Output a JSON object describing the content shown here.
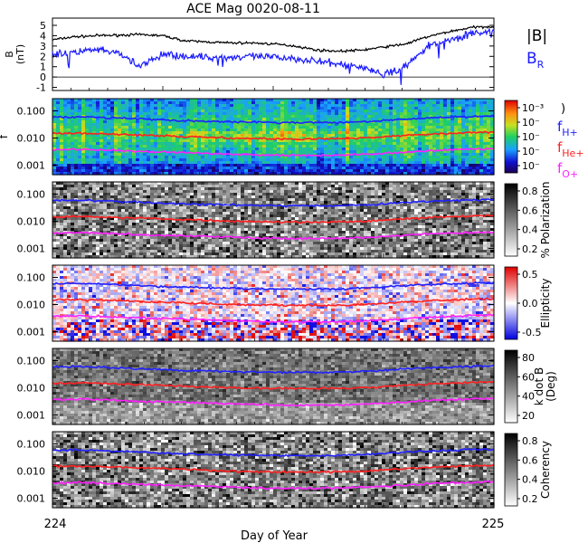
{
  "chart_data": [
    {
      "type": "line",
      "title": "ACE Mag 0020-08-11",
      "ylabel": "B\n(nT)",
      "ylim": [
        -1.3,
        5.7
      ],
      "yticks": [
        "-1",
        "0",
        "1",
        "2",
        "3",
        "4",
        "5"
      ],
      "legend": "right",
      "series": [
        {
          "name": "|B|",
          "color": "#000000",
          "x": [
            224.0,
            224.05,
            224.1,
            224.15,
            224.2,
            224.25,
            224.3,
            224.35,
            224.4,
            224.45,
            224.5,
            224.55,
            224.6,
            224.65,
            224.7,
            224.75,
            224.8,
            224.85,
            224.9,
            224.95,
            225.0
          ],
          "values": [
            3.6,
            3.9,
            4.0,
            4.05,
            4.1,
            4.0,
            3.5,
            3.4,
            3.3,
            3.3,
            3.2,
            3.0,
            2.6,
            2.5,
            2.6,
            2.9,
            3.2,
            3.9,
            4.4,
            4.8,
            4.9
          ]
        },
        {
          "name": "B_R",
          "color": "#1a1aff",
          "x": [
            224.0,
            224.05,
            224.1,
            224.15,
            224.2,
            224.25,
            224.3,
            224.35,
            224.4,
            224.45,
            224.5,
            224.55,
            224.6,
            224.65,
            224.7,
            224.75,
            224.8,
            224.85,
            224.9,
            224.95,
            225.0
          ],
          "values": [
            2.2,
            2.4,
            2.6,
            2.3,
            1.0,
            2.2,
            2.0,
            1.9,
            1.9,
            2.0,
            1.9,
            1.8,
            1.5,
            1.2,
            1.0,
            0.2,
            1.0,
            3.0,
            3.6,
            4.2,
            4.4
          ]
        }
      ]
    },
    {
      "type": "heatmap",
      "ylabel": "f",
      "ytick_labels": [
        "0.100",
        "0.010",
        "0.001"
      ],
      "colorbar": {
        "type": "rainbow",
        "labels": [
          "10⁻³",
          "10⁻",
          "10⁻",
          "10⁻",
          "10⁻"
        ],
        "unit": ")"
      },
      "lines": [
        {
          "name": "fH+",
          "color": "#2020ff",
          "values": [
            0.058,
            0.06,
            0.055,
            0.05,
            0.045,
            0.042,
            0.04,
            0.038,
            0.037,
            0.037,
            0.038,
            0.042,
            0.05,
            0.055,
            0.06,
            0.065
          ]
        },
        {
          "name": "fHe+",
          "color": "#ff2020",
          "values": [
            0.015,
            0.015,
            0.014,
            0.013,
            0.012,
            0.011,
            0.01,
            0.0095,
            0.0093,
            0.0093,
            0.0095,
            0.0105,
            0.0125,
            0.014,
            0.0155,
            0.0165
          ]
        },
        {
          "name": "fO+",
          "color": "#ff20ff",
          "values": [
            0.0037,
            0.0038,
            0.0035,
            0.0032,
            0.003,
            0.0028,
            0.0026,
            0.0024,
            0.0023,
            0.0023,
            0.0024,
            0.0026,
            0.003,
            0.0035,
            0.0038,
            0.004
          ]
        }
      ]
    },
    {
      "type": "heatmap",
      "ytick_labels": [
        "0.100",
        "0.010",
        "0.001"
      ],
      "colorbar": {
        "type": "gray",
        "label": "% Polarization",
        "ticks": [
          "0.8",
          "0.6",
          "0.4",
          "0.2"
        ]
      }
    },
    {
      "type": "heatmap",
      "ytick_labels": [
        "0.100",
        "0.010",
        "0.001"
      ],
      "colorbar": {
        "type": "bluered",
        "label": "Ellipticity",
        "ticks": [
          "0.5",
          "0.0",
          "-0.5"
        ]
      }
    },
    {
      "type": "heatmap",
      "ytick_labels": [
        "0.100",
        "0.010",
        "0.001"
      ],
      "colorbar": {
        "type": "gray",
        "label": "k dot B\n(Deg)",
        "ticks": [
          "80",
          "60",
          "40",
          "20"
        ]
      }
    },
    {
      "type": "heatmap",
      "ytick_labels": [
        "0.100",
        "0.010",
        "0.001"
      ],
      "colorbar": {
        "type": "gray",
        "label": "Coherency",
        "ticks": [
          "0.8",
          "0.6",
          "0.4",
          "0.2"
        ]
      }
    }
  ],
  "figure": {
    "title": "ACE Mag 0020-08-11",
    "xlabel": "Day of Year",
    "xtick_labels": [
      "224",
      "225"
    ],
    "xlim": [
      224,
      225
    ],
    "legend_top": [
      {
        "label": "|B|",
        "color": "#000000"
      },
      {
        "label": "B",
        "sub": "R",
        "color": "#1a1aff"
      }
    ],
    "legend_freq": [
      {
        "label": "f",
        "sub": "H+",
        "color": "#2020ff"
      },
      {
        "label": "f",
        "sub": "He+",
        "color": "#ff2020"
      },
      {
        "label": "f",
        "sub": "O+",
        "color": "#ff20ff"
      }
    ]
  }
}
